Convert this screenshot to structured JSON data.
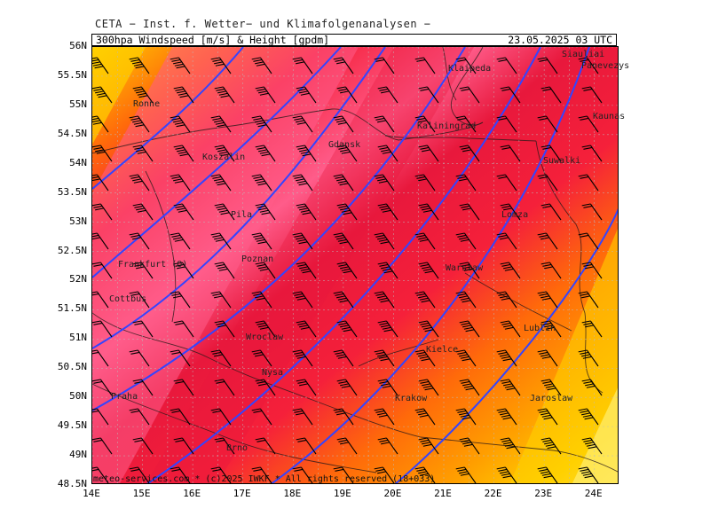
{
  "header": {
    "source": "CETA − Inst. f. Wetter− und Klimafolgenanalysen −"
  },
  "title": {
    "left": "300hpa Windspeed [m/s] & Height [gpdm]",
    "right": "23.05.2025 03 UTC"
  },
  "footer": {
    "credit": "meteo-services.com * (c)2025 IWKF * All rights reserved (18+033)"
  },
  "axes": {
    "lat_labels": [
      "56N",
      "55.5N",
      "55N",
      "54.5N",
      "54N",
      "53.5N",
      "53N",
      "52.5N",
      "52N",
      "51.5N",
      "51N",
      "50.5N",
      "50N",
      "49.5N",
      "49N",
      "48.5N"
    ],
    "lon_labels": [
      "14E",
      "15E",
      "16E",
      "17E",
      "18E",
      "19E",
      "20E",
      "21E",
      "22E",
      "23E",
      "24E"
    ]
  },
  "cities": [
    {
      "name": "Ronne"
    },
    {
      "name": "Klaipeda"
    },
    {
      "name": "Siauliai"
    },
    {
      "name": "Panevezys"
    },
    {
      "name": "Kaliningrad"
    },
    {
      "name": "Kaunas"
    },
    {
      "name": "Gdansk"
    },
    {
      "name": "Koszalin"
    },
    {
      "name": "Suwalki"
    },
    {
      "name": "Pila"
    },
    {
      "name": "Lomza"
    },
    {
      "name": "Poznan"
    },
    {
      "name": "Frankfurt (O)"
    },
    {
      "name": "Warszaw"
    },
    {
      "name": "Cottbus"
    },
    {
      "name": "Lublin"
    },
    {
      "name": "Wroclaw"
    },
    {
      "name": "Kielce"
    },
    {
      "name": "Nysa"
    },
    {
      "name": "Praha"
    },
    {
      "name": "Krakow"
    },
    {
      "name": "Jaroslaw"
    },
    {
      "name": "Brno"
    }
  ],
  "colors": {
    "pink": "#ff5c8a",
    "red": "#f5203a",
    "crimson": "#e8183c",
    "orange": "#ff6a0a",
    "amber": "#ffa000",
    "yellow": "#ffd000",
    "paleyellow": "#ffee70",
    "contour": "#3344ff",
    "grid": "#bbbbbb"
  }
}
